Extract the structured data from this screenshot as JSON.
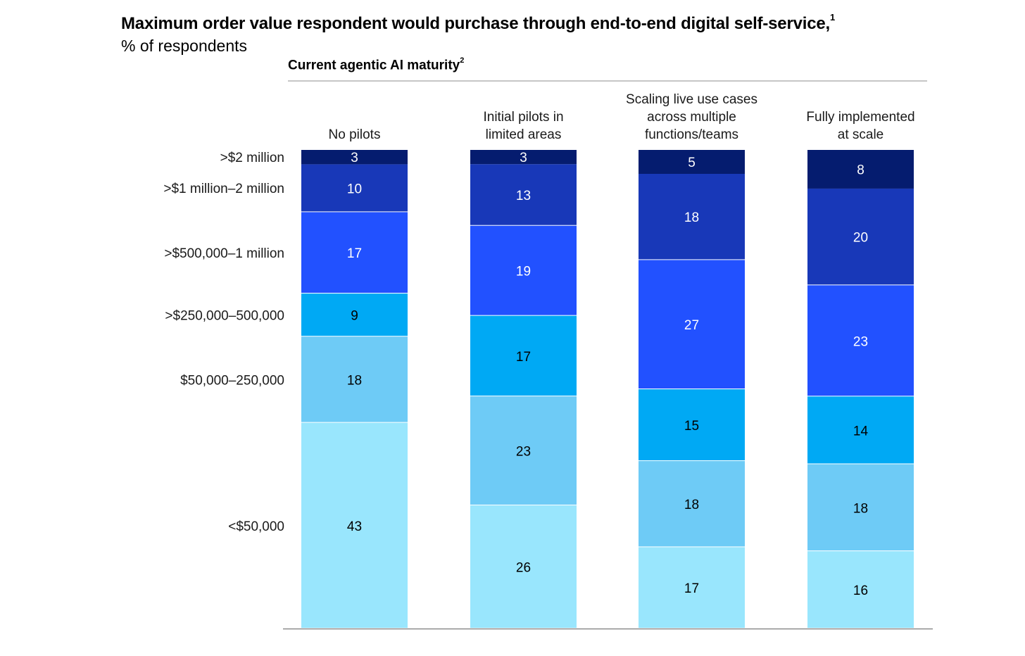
{
  "chart_data": {
    "type": "bar",
    "stacked": true,
    "title": "Maximum order value respondent would purchase through end-to-end digital self-service,",
    "title_footnote": "1",
    "subtitle": "% of respondents",
    "group_label": "Current agentic AI maturity",
    "group_label_footnote": "2",
    "categories": [
      [
        "No pilots"
      ],
      [
        "Initial pilots in",
        "limited areas"
      ],
      [
        "Scaling live use cases",
        "across multiple",
        "functions/teams"
      ],
      [
        "Fully implemented",
        "at scale"
      ]
    ],
    "series": [
      {
        "name": "<$50,000",
        "color": "#99e6fd",
        "text_color": "#000000",
        "values": [
          43,
          26,
          17,
          16
        ]
      },
      {
        "name": "$50,000–250,000",
        "color": "#6ecbf6",
        "text_color": "#000000",
        "values": [
          18,
          23,
          18,
          18
        ]
      },
      {
        "name": ">$250,000–500,000",
        "color": "#00a9f4",
        "text_color": "#000000",
        "values": [
          9,
          17,
          15,
          14
        ]
      },
      {
        "name": ">$500,000–1 million",
        "color": "#2251ff",
        "text_color": "#ffffff",
        "values": [
          17,
          19,
          27,
          23
        ]
      },
      {
        "name": ">$1 million–2 million",
        "color": "#1838b8",
        "text_color": "#ffffff",
        "values": [
          10,
          13,
          18,
          20
        ]
      },
      {
        "name": ">$2 million",
        "color": "#051c6f",
        "text_color": "#ffffff",
        "values": [
          3,
          3,
          5,
          8
        ]
      }
    ],
    "ylim": [
      0,
      100
    ]
  }
}
